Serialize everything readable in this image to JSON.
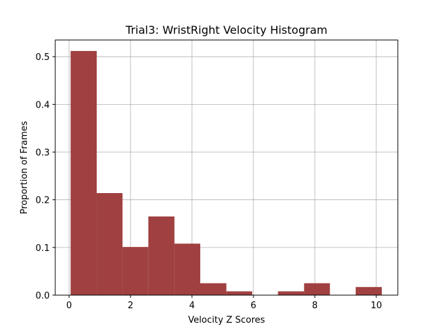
{
  "chart_data": {
    "type": "bar",
    "title": "Trial3: WristRight Velocity Histogram",
    "xlabel": "Velocity Z Scores",
    "ylabel": "Proportion of Frames",
    "xlim": [
      -0.45,
      10.7
    ],
    "ylim": [
      0,
      0.535
    ],
    "grid": true,
    "bar_color": "#a04040",
    "x_ticks": [
      {
        "value": 0,
        "label": "0"
      },
      {
        "value": 2,
        "label": "2"
      },
      {
        "value": 4,
        "label": "4"
      },
      {
        "value": 6,
        "label": "6"
      },
      {
        "value": 8,
        "label": "8"
      },
      {
        "value": 10,
        "label": "10"
      }
    ],
    "y_ticks": [
      {
        "value": 0.0,
        "label": "0.0"
      },
      {
        "value": 0.1,
        "label": "0.1"
      },
      {
        "value": 0.2,
        "label": "0.2"
      },
      {
        "value": 0.3,
        "label": "0.3"
      },
      {
        "value": 0.4,
        "label": "0.4"
      },
      {
        "value": 0.5,
        "label": "0.5"
      }
    ],
    "bins": [
      {
        "x0": 0.05,
        "x1": 0.9,
        "value": 0.512
      },
      {
        "x0": 0.9,
        "x1": 1.74,
        "value": 0.214
      },
      {
        "x0": 1.74,
        "x1": 2.58,
        "value": 0.101
      },
      {
        "x0": 2.58,
        "x1": 3.43,
        "value": 0.165
      },
      {
        "x0": 3.43,
        "x1": 4.27,
        "value": 0.108
      },
      {
        "x0": 4.27,
        "x1": 5.12,
        "value": 0.025
      },
      {
        "x0": 5.12,
        "x1": 5.96,
        "value": 0.008
      },
      {
        "x0": 5.96,
        "x1": 6.8,
        "value": 0.0
      },
      {
        "x0": 6.8,
        "x1": 7.65,
        "value": 0.008
      },
      {
        "x0": 7.65,
        "x1": 8.49,
        "value": 0.025
      },
      {
        "x0": 8.49,
        "x1": 9.33,
        "value": 0.0
      },
      {
        "x0": 9.33,
        "x1": 10.18,
        "value": 0.017
      }
    ]
  }
}
